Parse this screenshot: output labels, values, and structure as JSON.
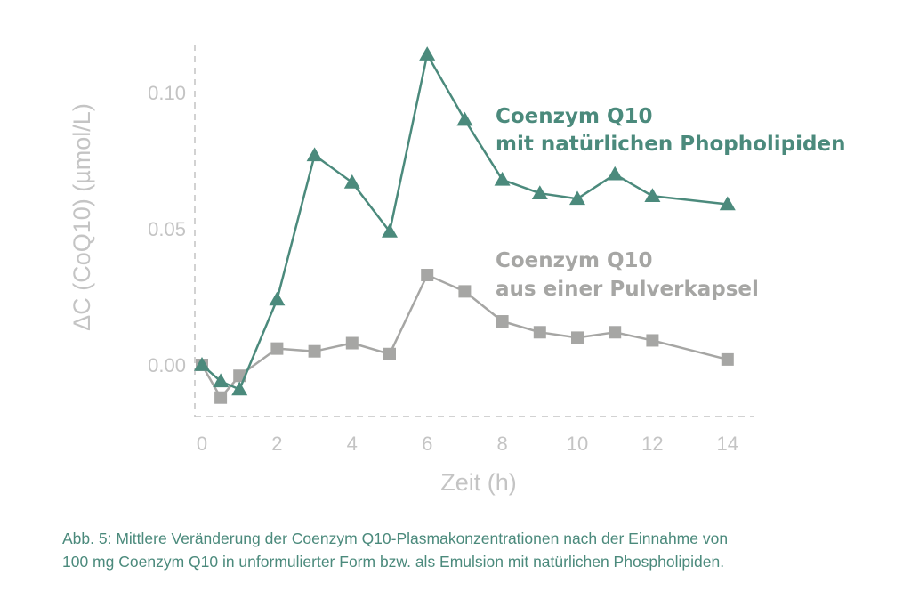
{
  "chart_data": {
    "type": "line",
    "xlabel": "Zeit (h)",
    "ylabel": "ΔC (CoQ10) (µmol/L)",
    "xlim": [
      0,
      15
    ],
    "ylim": [
      -0.02,
      0.12
    ],
    "x_ticks": [
      "0",
      "2",
      "4",
      "6",
      "8",
      "10",
      "12",
      "14"
    ],
    "y_ticks": [
      "0.00",
      "0.05",
      "0.10"
    ],
    "grid": false,
    "series": [
      {
        "name": "Coenzym Q10 mit natürlichen Phopholipiden",
        "label_lines": [
          "Coenzym Q10",
          "mit natürlichen Phopholipiden"
        ],
        "color": "#4b8a7c",
        "marker": "triangle",
        "x": [
          0,
          0.5,
          1,
          2,
          3,
          4,
          5,
          6,
          7,
          8,
          9,
          10,
          11,
          12,
          14
        ],
        "values": [
          0.0,
          -0.006,
          -0.009,
          0.024,
          0.077,
          0.067,
          0.049,
          0.114,
          0.09,
          0.068,
          0.063,
          0.061,
          0.07,
          0.062,
          0.059
        ]
      },
      {
        "name": "Coenzym Q10 aus einer Pulverkapsel",
        "label_lines": [
          "Coenzym Q10",
          "aus einer Pulverkapsel"
        ],
        "color": "#a6a6a4",
        "marker": "square",
        "x": [
          0,
          0.5,
          1,
          2,
          3,
          4,
          5,
          6,
          7,
          8,
          9,
          10,
          11,
          12,
          14
        ],
        "values": [
          0.0,
          -0.012,
          -0.004,
          0.006,
          0.005,
          0.008,
          0.004,
          0.033,
          0.027,
          0.016,
          0.012,
          0.01,
          0.012,
          0.009,
          0.002
        ]
      }
    ]
  },
  "caption": {
    "line1": "Abb. 5: Mittlere Veränderung der Coenzym Q10-Plasmakonzentrationen nach der Einnahme von",
    "line2": "100 mg Coenzym Q10 in unformulierter Form bzw. als Emulsion mit natürlichen Phospholipiden."
  },
  "colors": {
    "axis": "#c4c4c4",
    "caption": "#4b8a7c"
  }
}
